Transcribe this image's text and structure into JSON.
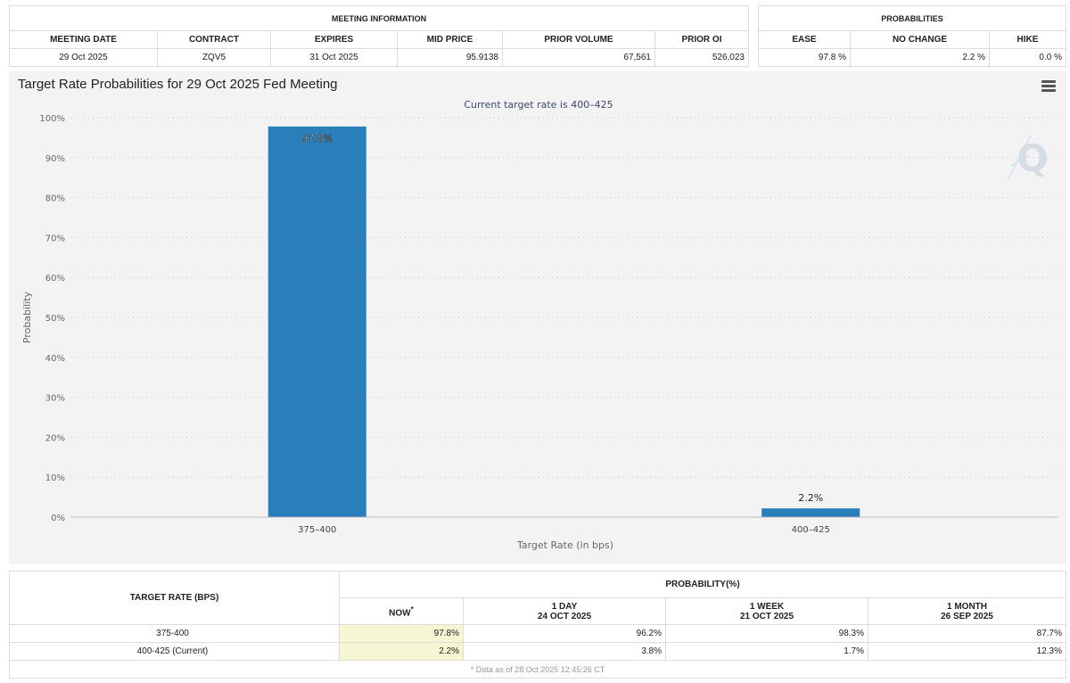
{
  "meeting_info": {
    "title": "MEETING INFORMATION",
    "headers": [
      "MEETING DATE",
      "CONTRACT",
      "EXPIRES",
      "MID PRICE",
      "PRIOR VOLUME",
      "PRIOR OI"
    ],
    "values": [
      "29 Oct 2025",
      "ZQV5",
      "31 Oct 2025",
      "95.9138",
      "67,561",
      "526,023"
    ]
  },
  "probabilities": {
    "title": "PROBABILITIES",
    "headers": [
      "EASE",
      "NO CHANGE",
      "HIKE"
    ],
    "values": [
      "97.8 %",
      "2.2 %",
      "0.0 %"
    ]
  },
  "chart_data": {
    "type": "bar",
    "title": "Target Rate Probabilities for 29 Oct 2025 Fed Meeting",
    "subtitle": "Current target rate is 400–425",
    "xlabel": "Target Rate (in bps)",
    "ylabel": "Probability",
    "categories": [
      "375–400",
      "400–425"
    ],
    "values": [
      97.8,
      2.2
    ],
    "data_labels": [
      "97.8%",
      "2.2%"
    ],
    "ylim": [
      0,
      100
    ],
    "yticks": [
      0,
      10,
      20,
      30,
      40,
      50,
      60,
      70,
      80,
      90,
      100
    ],
    "ytick_labels": [
      "0%",
      "10%",
      "20%",
      "30%",
      "40%",
      "50%",
      "60%",
      "70%",
      "80%",
      "90%",
      "100%"
    ],
    "grid": true,
    "bar_color": "#2a7fba"
  },
  "prob_table": {
    "row_header": "TARGET RATE (BPS)",
    "group_header": "PROBABILITY(%)",
    "columns": [
      {
        "label": "NOW",
        "sup": "*",
        "date": ""
      },
      {
        "label": "1 DAY",
        "date": "24 OCT 2025"
      },
      {
        "label": "1 WEEK",
        "date": "21 OCT 2025"
      },
      {
        "label": "1 MONTH",
        "date": "26 SEP 2025"
      }
    ],
    "rows": [
      {
        "rate": "375-400",
        "values": [
          "97.8%",
          "96.2%",
          "98.3%",
          "87.7%"
        ]
      },
      {
        "rate": "400-425 (Current)",
        "values": [
          "2.2%",
          "3.8%",
          "1.7%",
          "12.3%"
        ]
      }
    ],
    "footnote": "* Data as of 28 Oct 2025 12:45:26 CT"
  }
}
